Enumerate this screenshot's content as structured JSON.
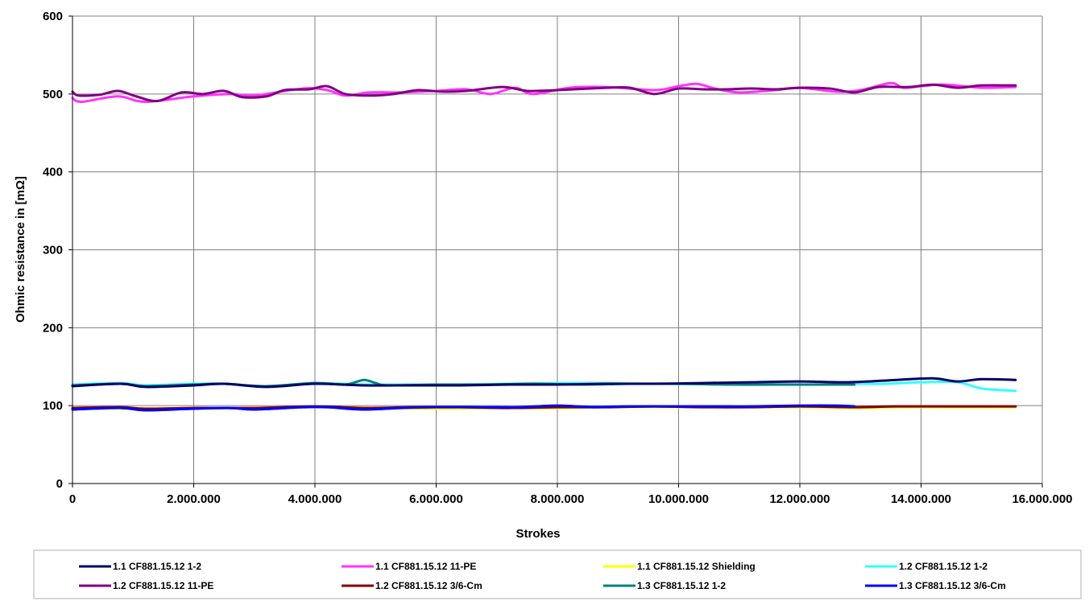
{
  "chart_data": {
    "type": "line",
    "title": "",
    "xlabel": "Strokes",
    "ylabel": "Ohmic resistance in [mΩ]",
    "xlim": [
      0,
      16000000
    ],
    "ylim": [
      0,
      600
    ],
    "x_ticks": [
      0,
      2000000,
      4000000,
      6000000,
      8000000,
      10000000,
      12000000,
      14000000,
      16000000
    ],
    "x_tick_labels": [
      "0",
      "2.000.000",
      "4.000.000",
      "6.000.000",
      "8.000.000",
      "10.000.000",
      "12.000.000",
      "14.000.000",
      "16.000.000"
    ],
    "y_ticks": [
      0,
      100,
      200,
      300,
      400,
      500,
      600
    ],
    "y_tick_labels": [
      "0",
      "100",
      "200",
      "300",
      "400",
      "500",
      "600"
    ],
    "grid": true,
    "legend_position": "bottom",
    "series": [
      {
        "name": "1.1 CF881.15.12 1-2",
        "color": "#000066",
        "x": [
          0,
          800000,
          1200000,
          2000000,
          2500000,
          3200000,
          4000000,
          4800000,
          5600000,
          6400000,
          7200000,
          8000000,
          8800000,
          9600000,
          10400000,
          11200000,
          12000000,
          12800000,
          13600000,
          14200000,
          14600000,
          15000000,
          15560000
        ],
        "y": [
          125,
          128,
          124,
          126,
          128,
          124,
          128,
          126,
          126,
          126,
          127,
          127,
          128,
          128,
          129,
          130,
          131,
          130,
          133,
          135,
          131,
          134,
          133
        ]
      },
      {
        "name": "1.1 CF881.15.12 11-PE",
        "color": "#FF33FF",
        "x": [
          0,
          150000,
          750000,
          1200000,
          2000000,
          2600000,
          3000000,
          3800000,
          4200000,
          4500000,
          4900000,
          5400000,
          6000000,
          6500000,
          6900000,
          7300000,
          7600000,
          8200000,
          8800000,
          9600000,
          10000000,
          10300000,
          10600000,
          11000000,
          11600000,
          12000000,
          12600000,
          13000000,
          13500000,
          13700000,
          14000000,
          14400000,
          15000000,
          15560000
        ],
        "y": [
          495,
          490,
          497,
          490,
          497,
          500,
          498,
          507,
          505,
          498,
          502,
          502,
          504,
          506,
          500,
          508,
          500,
          508,
          509,
          505,
          510,
          513,
          507,
          502,
          505,
          508,
          503,
          505,
          514,
          508,
          510,
          512,
          508,
          509
        ]
      },
      {
        "name": "1.1 CF881.15.12 Shielding",
        "color": "#FFFF00",
        "x": [
          0,
          1000000,
          2000000,
          3000000,
          4000000,
          5000000,
          6000000,
          7000000,
          8000000,
          9000000,
          10000000,
          11000000,
          12000000,
          12900000,
          13600000,
          14400000,
          15000000,
          15560000
        ],
        "y": [
          97,
          96,
          97,
          96,
          98,
          97,
          96,
          97,
          97,
          98,
          98,
          98,
          98,
          97,
          98,
          98,
          98,
          98
        ]
      },
      {
        "name": "1.2 CF881.15.12 1-2",
        "color": "#33FFFF",
        "x": [
          0,
          800000,
          1200000,
          2000000,
          2500000,
          3200000,
          4000000,
          4800000,
          5600000,
          6400000,
          7200000,
          8000000,
          8800000,
          9600000,
          10400000,
          11200000,
          12000000,
          12900000,
          13400000,
          14000000,
          14600000,
          15000000,
          15560000
        ],
        "y": [
          127,
          129,
          126,
          128,
          128,
          125,
          129,
          127,
          127,
          127,
          128,
          129,
          129,
          128,
          128,
          128,
          127,
          128,
          128,
          130,
          130,
          122,
          119
        ]
      },
      {
        "name": "1.2 CF881.15.12 11-PE",
        "color": "#800080",
        "x": [
          0,
          100000,
          450000,
          750000,
          1050000,
          1400000,
          1800000,
          2150000,
          2500000,
          2800000,
          3200000,
          3500000,
          3900000,
          4200000,
          4500000,
          4900000,
          5300000,
          5700000,
          6100000,
          6500000,
          7100000,
          7500000,
          8000000,
          8800000,
          9200000,
          9600000,
          10000000,
          10400000,
          10800000,
          11200000,
          11600000,
          12000000,
          12500000,
          12900000,
          13300000,
          13800000,
          14200000,
          14600000,
          15000000,
          15560000
        ],
        "y": [
          503,
          498,
          499,
          504,
          497,
          491,
          502,
          500,
          504,
          496,
          497,
          505,
          506,
          510,
          500,
          498,
          500,
          505,
          503,
          504,
          509,
          504,
          505,
          508,
          508,
          500,
          507,
          506,
          506,
          507,
          506,
          508,
          507,
          502,
          509,
          509,
          512,
          508,
          511,
          511
        ]
      },
      {
        "name": "1.2 CF881.15.12 3/6-Cm",
        "color": "#800000",
        "x": [
          0,
          800000,
          1200000,
          2000000,
          3000000,
          4000000,
          4800000,
          5600000,
          6400000,
          7200000,
          8000000,
          8800000,
          9600000,
          10400000,
          11200000,
          12000000,
          12900000,
          13600000,
          14400000,
          15000000,
          15560000
        ],
        "y": [
          97,
          98,
          96,
          97,
          97,
          99,
          97,
          98,
          98,
          97,
          98,
          98,
          99,
          98,
          98,
          99,
          98,
          99,
          99,
          99,
          99
        ]
      },
      {
        "name": "1.3 CF881.15.12 1-2",
        "color": "#008080",
        "x": [
          0,
          800000,
          1200000,
          2000000,
          2500000,
          3200000,
          4000000,
          4500000,
          4800000,
          5000000,
          5200000,
          6000000,
          6800000,
          7600000,
          8400000,
          9200000,
          10000000,
          10800000,
          11600000,
          12400000,
          12900000
        ],
        "y": [
          126,
          128,
          125,
          127,
          128,
          125,
          129,
          127,
          133,
          129,
          126,
          127,
          127,
          128,
          127,
          128,
          128,
          127,
          127,
          127,
          127
        ]
      },
      {
        "name": "1.3 CF881.15.12 3/6-Cm",
        "color": "#0000FF",
        "x": [
          0,
          800000,
          1200000,
          2000000,
          2600000,
          3000000,
          3800000,
          4200000,
          4800000,
          5400000,
          6000000,
          6800000,
          7400000,
          8000000,
          8600000,
          9200000,
          10000000,
          10600000,
          11200000,
          12000000,
          12600000,
          12900000
        ],
        "y": [
          95,
          97,
          94,
          96,
          97,
          95,
          98,
          98,
          95,
          97,
          98,
          98,
          98,
          100,
          98,
          99,
          99,
          99,
          99,
          100,
          100,
          99
        ]
      }
    ]
  }
}
